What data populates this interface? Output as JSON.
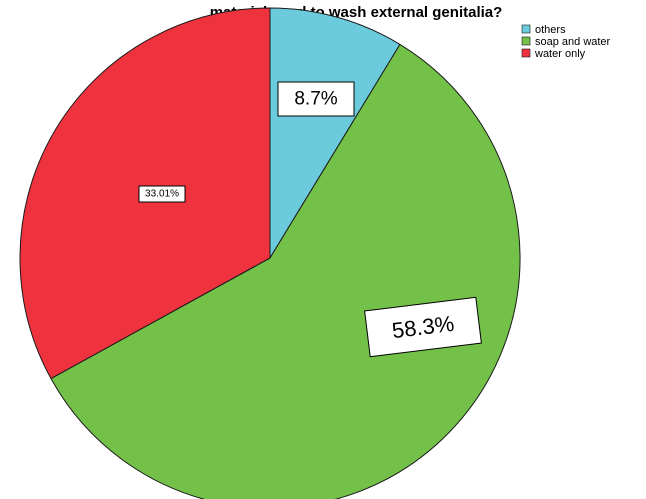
{
  "chart_data": {
    "type": "pie",
    "title": "material used to wash external genitalia?",
    "slices": [
      {
        "name": "others",
        "value": 8.7,
        "label": "8.7%",
        "color": "#6BCBDD"
      },
      {
        "name": "soap and water",
        "value": 58.3,
        "label": "58.3%",
        "color": "#74C14A"
      },
      {
        "name": "water only",
        "value": 33.01,
        "label": "33.01%",
        "color": "#EE333F"
      }
    ],
    "start_angle_deg": 0,
    "direction": "clockwise",
    "legend": {
      "placement": "top-right",
      "entries": [
        "others",
        "soap and water",
        "water only"
      ]
    }
  }
}
